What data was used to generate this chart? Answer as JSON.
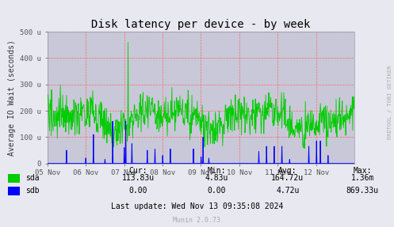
{
  "title": "Disk latency per device - by week",
  "ylabel": "Average IO Wait (seconds)",
  "ytick_labels": [
    "0",
    "100 u",
    "200 u",
    "300 u",
    "400 u",
    "500 u"
  ],
  "xtick_labels": [
    "05 Nov",
    "06 Nov",
    "07 Nov",
    "08 Nov",
    "09 Nov",
    "10 Nov",
    "11 Nov",
    "12 Nov"
  ],
  "bg_color": "#e8e8f0",
  "plot_bg_color": "#c8c8d8",
  "grid_color": "#ff6666",
  "sda_color": "#00cc00",
  "sdb_color": "#0000ff",
  "footer_text": "Last update: Wed Nov 13 09:35:08 2024",
  "munin_text": "Munin 2.0.73",
  "rrdtool_text": "RRDTOOL / TOBI OETIKER",
  "cur_header": "Cur:",
  "min_header": "Min:",
  "avg_header": "Avg:",
  "max_header": "Max:",
  "sda_label": "sda",
  "sdb_label": "sdb",
  "sda_cur": "113.83u",
  "sda_min": "4.83u",
  "sda_avg": "164.72u",
  "sda_max": "1.36m",
  "sdb_cur": "0.00",
  "sdb_min": "0.00",
  "sdb_avg": "4.72u",
  "sdb_max": "869.33u"
}
